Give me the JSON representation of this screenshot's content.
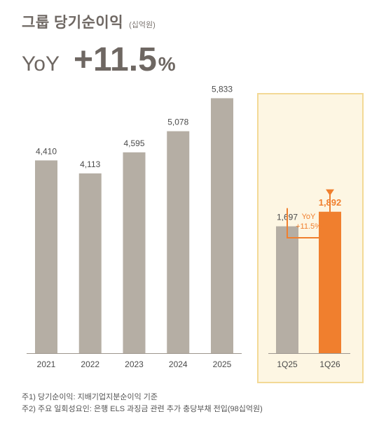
{
  "header": {
    "title": "그룹 당기순이익",
    "unit": "(십억원)",
    "yoy_label": "YoY",
    "yoy_value": "+11.5",
    "yoy_pct": "%"
  },
  "chart_data": [
    {
      "type": "bar",
      "categories": [
        "2021",
        "2022",
        "2023",
        "2024",
        "2025"
      ],
      "values": [
        4410,
        4113,
        4595,
        5078,
        5833
      ],
      "value_labels": [
        "4,410",
        "4,113",
        "4,595",
        "5,078",
        "5,833"
      ],
      "ylim": [
        0,
        6400
      ],
      "color": "#b5aea4",
      "grid": false
    },
    {
      "type": "bar",
      "categories": [
        "1Q25",
        "1Q26"
      ],
      "values": [
        1697,
        1892
      ],
      "value_labels": [
        "1,697",
        "1,892"
      ],
      "ylim": [
        0,
        2900
      ],
      "colors": [
        "#b5aea4",
        "#f07f2e"
      ],
      "annotation": {
        "line1": "YoY",
        "line2": "+11.5%",
        "color": "#f07f2e"
      },
      "grid": false
    }
  ],
  "notes": [
    "주1) 당기순이익: 지배기업지분순이익 기준",
    "주2) 주요 일회성요인: 은행 ELS 과징금 관련 추가 충당부채 전입(98십억원)"
  ]
}
